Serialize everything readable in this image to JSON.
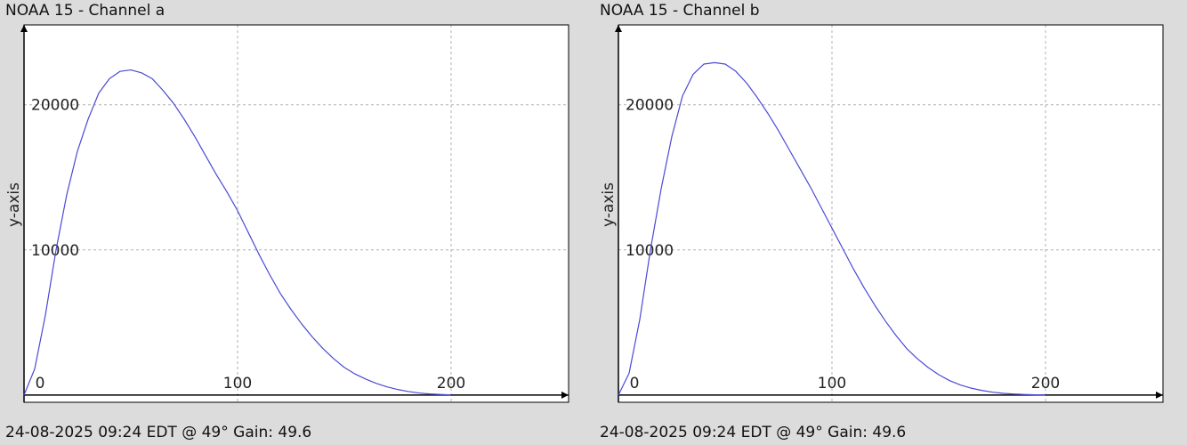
{
  "panels": [
    {
      "title": "NOAA 15 - Channel a",
      "footer": "24-08-2025 09:24 EDT @ 49° Gain: 49.6"
    },
    {
      "title": "NOAA 15 - Channel b",
      "footer": "24-08-2025 09:24 EDT @ 49° Gain: 49.6"
    }
  ],
  "colors": {
    "background": "#dcdcdc",
    "plot_background": "#ffffff",
    "line": "#4a4ad6",
    "grid": "#b0b0b0",
    "axis": "#000000"
  },
  "chart_data": [
    {
      "type": "line",
      "title": "NOAA 15 - Channel a",
      "xlabel": "",
      "ylabel": "y-axis",
      "xlim": [
        0,
        255
      ],
      "ylim": [
        -500,
        25500
      ],
      "x_ticks": [
        0,
        100,
        200
      ],
      "y_ticks": [
        0,
        10000,
        20000
      ],
      "grid": true,
      "legend": "none",
      "series": [
        {
          "x": [
            0,
            5,
            10,
            15,
            20,
            25,
            30,
            35,
            40,
            45,
            50,
            55,
            60,
            65,
            70,
            75,
            80,
            85,
            90,
            95,
            100,
            105,
            110,
            115,
            120,
            125,
            130,
            135,
            140,
            145,
            150,
            155,
            160,
            165,
            170,
            175,
            180,
            185,
            190,
            195,
            200
          ],
          "y": [
            0,
            1800,
            5500,
            10000,
            13800,
            16800,
            19000,
            20800,
            21800,
            22300,
            22400,
            22200,
            21800,
            21000,
            20100,
            19000,
            17800,
            16500,
            15200,
            14000,
            12700,
            11200,
            9700,
            8300,
            7000,
            5900,
            4900,
            4000,
            3200,
            2500,
            1900,
            1450,
            1100,
            800,
            560,
            380,
            240,
            140,
            75,
            35,
            10
          ]
        }
      ]
    },
    {
      "type": "line",
      "title": "NOAA 15 - Channel b",
      "xlabel": "",
      "ylabel": "y-axis",
      "xlim": [
        0,
        255
      ],
      "ylim": [
        -500,
        25500
      ],
      "x_ticks": [
        0,
        100,
        200
      ],
      "y_ticks": [
        0,
        10000,
        20000
      ],
      "grid": true,
      "legend": "none",
      "series": [
        {
          "x": [
            0,
            5,
            10,
            15,
            20,
            25,
            30,
            35,
            40,
            45,
            50,
            55,
            60,
            65,
            70,
            75,
            80,
            85,
            90,
            95,
            100,
            105,
            110,
            115,
            120,
            125,
            130,
            135,
            140,
            145,
            150,
            155,
            160,
            165,
            170,
            175,
            180,
            185,
            190,
            195,
            200
          ],
          "y": [
            0,
            1500,
            5200,
            10000,
            14200,
            17800,
            20600,
            22100,
            22800,
            22900,
            22800,
            22300,
            21500,
            20500,
            19400,
            18200,
            16900,
            15600,
            14300,
            12900,
            11500,
            10100,
            8700,
            7400,
            6200,
            5100,
            4100,
            3200,
            2500,
            1900,
            1400,
            1000,
            700,
            480,
            320,
            200,
            120,
            70,
            35,
            15,
            5
          ]
        }
      ]
    }
  ]
}
